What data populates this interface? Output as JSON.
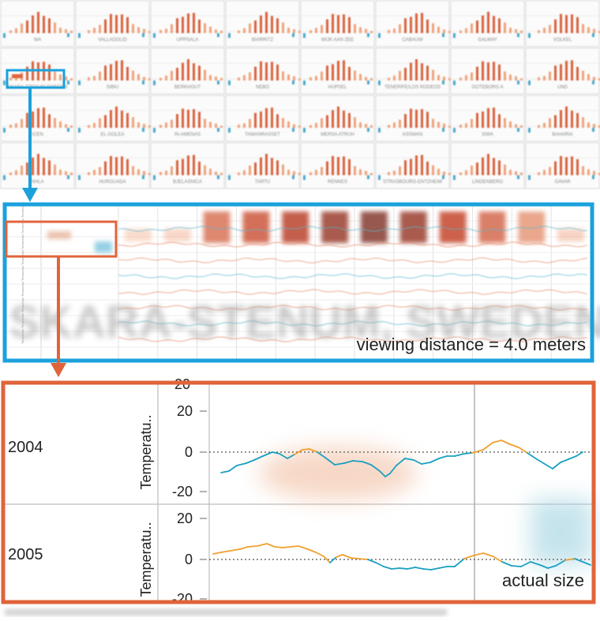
{
  "overview": {
    "cities": [
      [
        "WA",
        "VALLADOLID",
        "UPPSALA",
        "BIARRITZ",
        "WIJK AAN ZEE",
        "CABAUW",
        "GALWAY",
        "VOLKEL"
      ],
      [
        "SKARA-STENUM SWEDEN",
        "SIBIU",
        "BERKHOUT",
        "NEBO",
        "HUPSEL",
        "TENERIFE/LOS RODEOS",
        "GOTEBORG A",
        "UND"
      ],
      [
        "ICEN",
        "EL-GOLEA",
        "IN-AMENAS",
        "TAMANRASSET",
        "MERSA ATRUH",
        "ASSWAN",
        "SIWA",
        "BAHARIA"
      ],
      [
        "NHLA",
        "HURGUADA",
        "BJELASNICA",
        "TARTU",
        "RENNES",
        "STRASBOURG-ENTZHEIM",
        "LINDENBERG",
        "GAVAR"
      ]
    ],
    "selected": "SKARA-STENUM SWEDEN"
  },
  "middle": {
    "watermark": "SKARA-STENUM, SWEDEN",
    "caption": "viewing distance = 4.0 meters",
    "month_intensities": [
      0.05,
      0.1,
      0.45,
      0.6,
      0.75,
      0.9,
      1.0,
      0.9,
      0.7,
      0.5,
      0.25,
      0.15
    ],
    "row_label": "Temperatu."
  },
  "detail": {
    "rows": [
      {
        "year": "2004",
        "ylabel": "Temperatu..",
        "ticks": [
          "20",
          "0",
          "-20"
        ]
      },
      {
        "year": "2005",
        "ylabel": "Temperatu..",
        "ticks": [
          "20",
          "0",
          "-20"
        ]
      }
    ],
    "caption": "actual size"
  },
  "colors": {
    "blue_frame": "#1aa1dc",
    "orange_frame": "#e0643a",
    "warm_line": "#f0a030",
    "cool_line": "#1aa0c0"
  }
}
